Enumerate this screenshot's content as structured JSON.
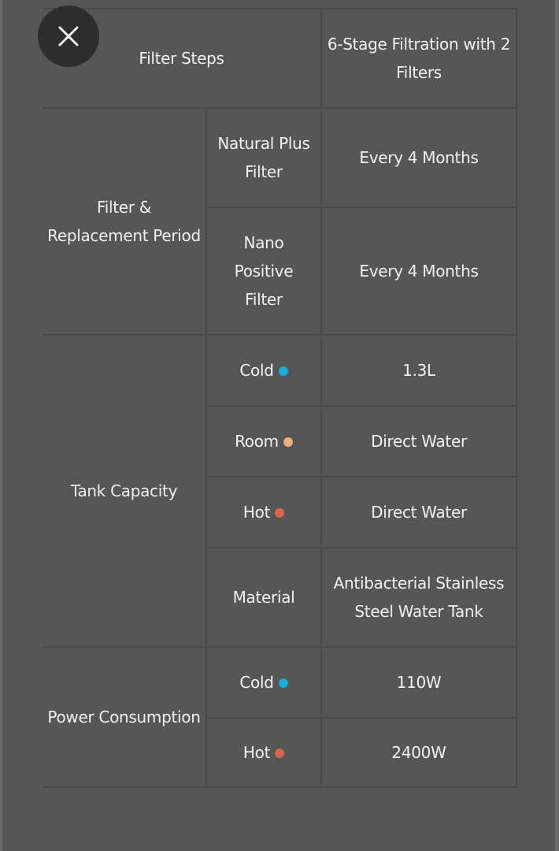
{
  "close_button": {
    "icon": "close-icon"
  },
  "colors": {
    "cold": "#1aaed6",
    "room": "#eeb07a",
    "hot": "#d9654a"
  },
  "spec_table": {
    "filter_steps": {
      "label": "Filter Steps",
      "value": "6-Stage Filtration with 2 Filters"
    },
    "filter_replacement": {
      "label": "Filter & Replacement Period",
      "rows": [
        {
          "label": "Natural Plus Filter",
          "value": "Every 4 Months"
        },
        {
          "label": "Nano Positive Filter",
          "value": "Every 4 Months"
        }
      ]
    },
    "tank_capacity": {
      "label": "Tank Capacity",
      "rows": [
        {
          "label": "Cold",
          "value": "1.3L"
        },
        {
          "label": "Room",
          "value": "Direct Water"
        },
        {
          "label": "Hot",
          "value": "Direct Water"
        },
        {
          "label": "Material",
          "value": "Antibacterial Stainless Steel Water Tank"
        }
      ]
    },
    "power_consumption": {
      "label": "Power Consumption",
      "rows": [
        {
          "label": "Cold",
          "value": "110W"
        },
        {
          "label": "Hot",
          "value": "2400W"
        }
      ]
    }
  }
}
